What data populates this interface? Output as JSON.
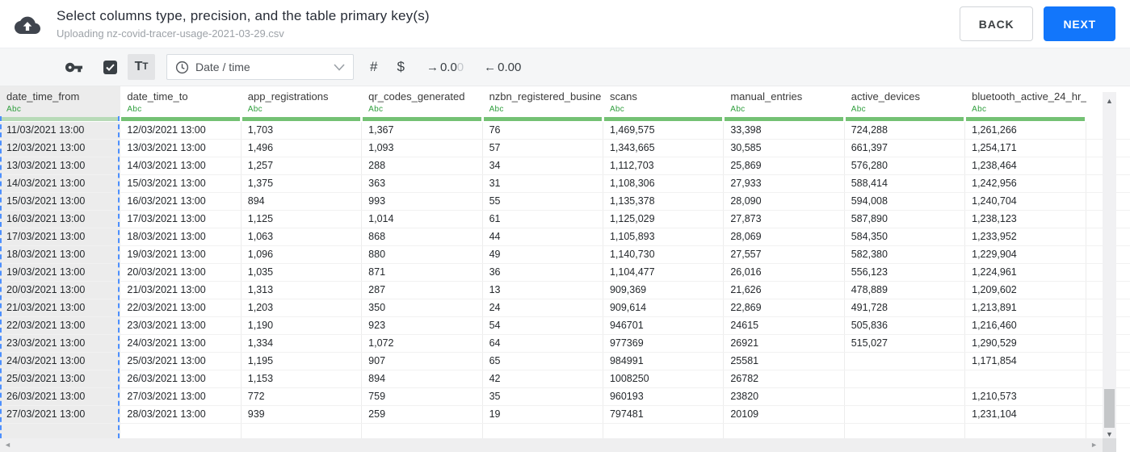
{
  "header": {
    "title": "Select columns type, precision, and the table primary key(s)",
    "subtitle": "Uploading nz-covid-tracer-usage-2021-03-29.csv",
    "back_label": "BACK",
    "next_label": "NEXT"
  },
  "toolbar": {
    "primary_key_checked": true,
    "text_type_label_big": "T",
    "text_type_label_small": "T",
    "type_select_value": "Date / time",
    "number_glyph": "#",
    "currency_glyph": "$",
    "decimal_right": {
      "arrow": "→",
      "text": "0.0",
      "faded": "0"
    },
    "decimal_left": {
      "arrow": "←",
      "text": "0.00",
      "faded": ""
    }
  },
  "table": {
    "columns": [
      {
        "name": "date_time_from",
        "type": "Abc",
        "selected": true
      },
      {
        "name": "date_time_to",
        "type": "Abc",
        "selected": false
      },
      {
        "name": "app_registrations",
        "type": "Abc",
        "selected": false
      },
      {
        "name": "qr_codes_generated",
        "type": "Abc",
        "selected": false
      },
      {
        "name": "nzbn_registered_busine",
        "type": "Abc",
        "selected": false
      },
      {
        "name": "scans",
        "type": "Abc",
        "selected": false
      },
      {
        "name": "manual_entries",
        "type": "Abc",
        "selected": false
      },
      {
        "name": "active_devices",
        "type": "Abc",
        "selected": false
      },
      {
        "name": "bluetooth_active_24_hr_",
        "type": "Abc",
        "selected": false
      }
    ],
    "rows": [
      [
        "11/03/2021 13:00",
        "12/03/2021 13:00",
        "1,703",
        "1,367",
        "76",
        "1,469,575",
        "33,398",
        "724,288",
        "1,261,266"
      ],
      [
        "12/03/2021 13:00",
        "13/03/2021 13:00",
        "1,496",
        "1,093",
        "57",
        "1,343,665",
        "30,585",
        "661,397",
        "1,254,171"
      ],
      [
        "13/03/2021 13:00",
        "14/03/2021 13:00",
        "1,257",
        "288",
        "34",
        "1,112,703",
        "25,869",
        "576,280",
        "1,238,464"
      ],
      [
        "14/03/2021 13:00",
        "15/03/2021 13:00",
        "1,375",
        "363",
        "31",
        "1,108,306",
        "27,933",
        "588,414",
        "1,242,956"
      ],
      [
        "15/03/2021 13:00",
        "16/03/2021 13:00",
        "894",
        "993",
        "55",
        "1,135,378",
        "28,090",
        "594,008",
        "1,240,704"
      ],
      [
        "16/03/2021 13:00",
        "17/03/2021 13:00",
        "1,125",
        "1,014",
        "61",
        "1,125,029",
        "27,873",
        "587,890",
        "1,238,123"
      ],
      [
        "17/03/2021 13:00",
        "18/03/2021 13:00",
        "1,063",
        "868",
        "44",
        "1,105,893",
        "28,069",
        "584,350",
        "1,233,952"
      ],
      [
        "18/03/2021 13:00",
        "19/03/2021 13:00",
        "1,096",
        "880",
        "49",
        "1,140,730",
        "27,557",
        "582,380",
        "1,229,904"
      ],
      [
        "19/03/2021 13:00",
        "20/03/2021 13:00",
        "1,035",
        "871",
        "36",
        "1,104,477",
        "26,016",
        "556,123",
        "1,224,961"
      ],
      [
        "20/03/2021 13:00",
        "21/03/2021 13:00",
        "1,313",
        "287",
        "13",
        "909,369",
        "21,626",
        "478,889",
        "1,209,602"
      ],
      [
        "21/03/2021 13:00",
        "22/03/2021 13:00",
        "1,203",
        "350",
        "24",
        "909,614",
        "22,869",
        "491,728",
        "1,213,891"
      ],
      [
        "22/03/2021 13:00",
        "23/03/2021 13:00",
        "1,190",
        "923",
        "54",
        "946701",
        "24615",
        "505,836",
        "1,216,460"
      ],
      [
        "23/03/2021 13:00",
        "24/03/2021 13:00",
        "1,334",
        "1,072",
        "64",
        "977369",
        "26921",
        "515,027",
        "1,290,529"
      ],
      [
        "24/03/2021 13:00",
        "25/03/2021 13:00",
        "1,195",
        "907",
        "65",
        "984991",
        "25581",
        "",
        "1,171,854"
      ],
      [
        "25/03/2021 13:00",
        "26/03/2021 13:00",
        "1,153",
        "894",
        "42",
        "1008250",
        "26782",
        "",
        ""
      ],
      [
        "26/03/2021 13:00",
        "27/03/2021 13:00",
        "772",
        "759",
        "35",
        "960193",
        "23820",
        "",
        "1,210,573"
      ],
      [
        "27/03/2021 13:00",
        "28/03/2021 13:00",
        "939",
        "259",
        "19",
        "797481",
        "20109",
        "",
        "1,231,104"
      ]
    ]
  },
  "scrollbars": {
    "up_glyph": "▲",
    "down_glyph": "▼",
    "left_glyph": "◄",
    "right_glyph": "►"
  },
  "colors": {
    "accent_blue": "#1276fb",
    "selection_dash_blue": "#4d90fe",
    "column_type_green": "#2f9e3d",
    "green_bar": "#74c174",
    "green_bar_selected": "#b7dab7",
    "selected_column_bg": "#ececec",
    "icon_dark": "#3a4045"
  }
}
